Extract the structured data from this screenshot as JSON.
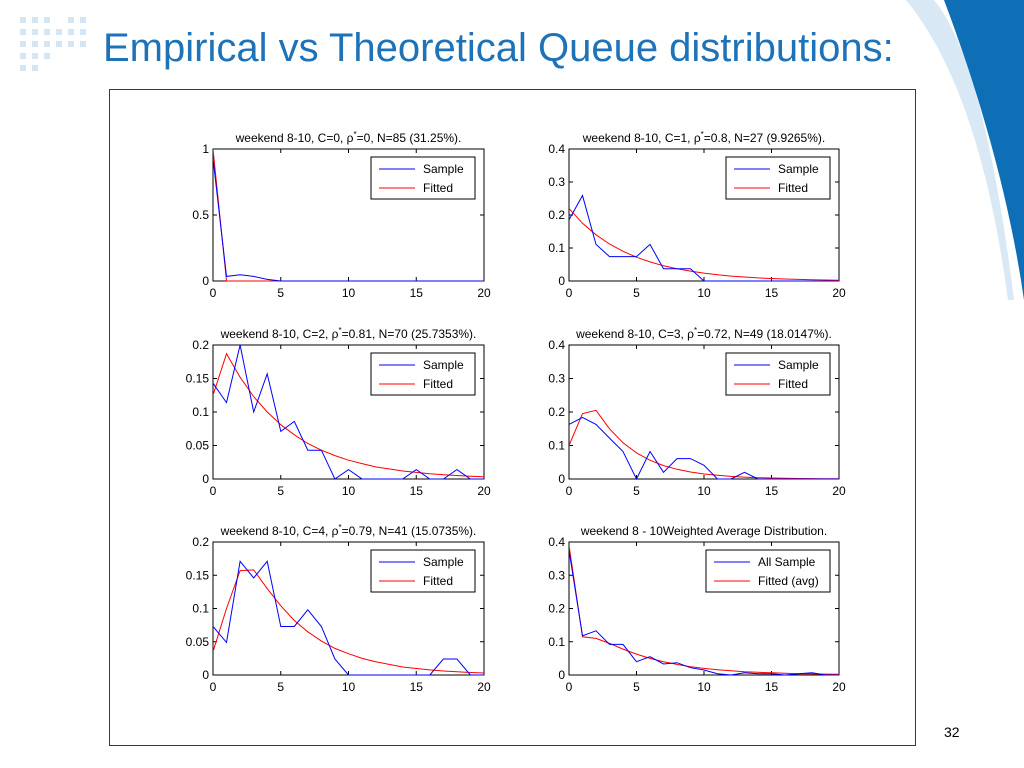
{
  "slide": {
    "title": "Empirical vs Theoretical Queue distributions:",
    "page_number": "32"
  },
  "colors": {
    "title": "#1e72b8",
    "accent_blue": "#0e6fb7",
    "sample_line": "#0000ff",
    "fitted_line": "#ff0000"
  },
  "chart_data": [
    {
      "type": "line",
      "title": "weekend 8-10, C=0, ρ*=0, N=85 (31.25%).",
      "title_parts": [
        "weekend 8-10, C=0, ρ",
        "*",
        "=0, N=85 (31.25%)."
      ],
      "xlim": [
        0,
        20
      ],
      "ylim": [
        0,
        1
      ],
      "xticks": [
        0,
        5,
        10,
        15,
        20
      ],
      "yticks": [
        0,
        0.5,
        1
      ],
      "xtick_labels": [
        "0",
        "5",
        "10",
        "15",
        "20"
      ],
      "ytick_labels": [
        "0",
        "0.5",
        "1"
      ],
      "legend_position": "top-right",
      "grid": false,
      "series": [
        {
          "name": "Sample",
          "color": "#0000ff",
          "x": [
            0,
            1,
            2,
            3,
            4,
            5,
            6,
            7,
            8,
            9,
            10,
            11,
            12,
            13,
            14,
            15,
            16,
            17,
            18,
            19,
            20
          ],
          "y": [
            0.93,
            0.035,
            0.047,
            0.035,
            0.012,
            0,
            0,
            0,
            0,
            0,
            0,
            0,
            0,
            0,
            0,
            0,
            0,
            0,
            0,
            0,
            0
          ]
        },
        {
          "name": "Fitted",
          "color": "#ff0000",
          "x": [
            0,
            1,
            2,
            3,
            4,
            5,
            6,
            7,
            8,
            9,
            10,
            11,
            12,
            13,
            14,
            15,
            16,
            17,
            18,
            19,
            20
          ],
          "y": [
            1,
            0,
            0,
            0,
            0,
            0,
            0,
            0,
            0,
            0,
            0,
            0,
            0,
            0,
            0,
            0,
            0,
            0,
            0,
            0,
            0
          ]
        }
      ]
    },
    {
      "type": "line",
      "title": "weekend 8-10, C=1, ρ*=0.8, N=27 (9.9265%).",
      "title_parts": [
        "weekend 8-10, C=1, ρ",
        "*",
        "=0.8, N=27 (9.9265%)."
      ],
      "xlim": [
        0,
        20
      ],
      "ylim": [
        0,
        0.4
      ],
      "xticks": [
        0,
        5,
        10,
        15,
        20
      ],
      "yticks": [
        0,
        0.1,
        0.2,
        0.3,
        0.4
      ],
      "xtick_labels": [
        "0",
        "5",
        "10",
        "15",
        "20"
      ],
      "ytick_labels": [
        "0",
        "0.1",
        "0.2",
        "0.3",
        "0.4"
      ],
      "legend_position": "top-right",
      "grid": false,
      "series": [
        {
          "name": "Sample",
          "color": "#0000ff",
          "x": [
            0,
            1,
            2,
            3,
            4,
            5,
            6,
            7,
            8,
            9,
            10,
            11,
            12,
            13,
            14,
            15,
            16,
            17,
            18,
            19,
            20
          ],
          "y": [
            0.185,
            0.259,
            0.111,
            0.074,
            0.074,
            0.074,
            0.111,
            0.037,
            0.037,
            0.037,
            0,
            0,
            0,
            0,
            0,
            0,
            0,
            0,
            0,
            0,
            0
          ]
        },
        {
          "name": "Fitted",
          "color": "#ff0000",
          "x": [
            0,
            1,
            2,
            3,
            4,
            5,
            6,
            7,
            8,
            9,
            10,
            11,
            12,
            13,
            14,
            15,
            16,
            17,
            18,
            19,
            20
          ],
          "y": [
            0.22,
            0.175,
            0.14,
            0.112,
            0.09,
            0.072,
            0.058,
            0.046,
            0.037,
            0.03,
            0.024,
            0.019,
            0.015,
            0.012,
            0.0095,
            0.0076,
            0.006,
            0.0048,
            0.0038,
            0.003,
            0.0024
          ]
        }
      ]
    },
    {
      "type": "line",
      "title": "weekend 8-10, C=2, ρ*=0.81, N=70 (25.7353%).",
      "title_parts": [
        "weekend 8-10, C=2, ρ",
        "*",
        "=0.81, N=70 (25.7353%)."
      ],
      "xlim": [
        0,
        20
      ],
      "ylim": [
        0,
        0.2
      ],
      "xticks": [
        0,
        5,
        10,
        15,
        20
      ],
      "yticks": [
        0,
        0.05,
        0.1,
        0.15,
        0.2
      ],
      "xtick_labels": [
        "0",
        "5",
        "10",
        "15",
        "20"
      ],
      "ytick_labels": [
        "0",
        "0.05",
        "0.1",
        "0.15",
        "0.2"
      ],
      "legend_position": "top-right",
      "grid": false,
      "series": [
        {
          "name": "Sample",
          "color": "#0000ff",
          "x": [
            0,
            1,
            2,
            3,
            4,
            5,
            6,
            7,
            8,
            9,
            10,
            11,
            12,
            13,
            14,
            15,
            16,
            17,
            18,
            19,
            20
          ],
          "y": [
            0.143,
            0.114,
            0.2,
            0.1,
            0.157,
            0.071,
            0.086,
            0.043,
            0.043,
            0,
            0.014,
            0,
            0,
            0,
            0,
            0.014,
            0,
            0,
            0.014,
            0,
            0
          ]
        },
        {
          "name": "Fitted",
          "color": "#ff0000",
          "x": [
            0,
            1,
            2,
            3,
            4,
            5,
            6,
            7,
            8,
            9,
            10,
            11,
            12,
            13,
            14,
            15,
            16,
            17,
            18,
            19,
            20
          ],
          "y": [
            0.125,
            0.187,
            0.152,
            0.123,
            0.1,
            0.081,
            0.066,
            0.053,
            0.043,
            0.035,
            0.028,
            0.023,
            0.018,
            0.015,
            0.012,
            0.0098,
            0.0079,
            0.0064,
            0.0052,
            0.0042,
            0.0034
          ]
        }
      ]
    },
    {
      "type": "line",
      "title": "weekend 8-10, C=3, ρ*=0.72, N=49 (18.0147%).",
      "title_parts": [
        "weekend 8-10, C=3, ρ",
        "*",
        "=0.72, N=49 (18.0147%)."
      ],
      "xlim": [
        0,
        20
      ],
      "ylim": [
        0,
        0.4
      ],
      "xticks": [
        0,
        5,
        10,
        15,
        20
      ],
      "yticks": [
        0,
        0.1,
        0.2,
        0.3,
        0.4
      ],
      "xtick_labels": [
        "0",
        "5",
        "10",
        "15",
        "20"
      ],
      "ytick_labels": [
        "0",
        "0.1",
        "0.2",
        "0.3",
        "0.4"
      ],
      "legend_position": "top-right",
      "grid": false,
      "series": [
        {
          "name": "Sample",
          "color": "#0000ff",
          "x": [
            0,
            1,
            2,
            3,
            4,
            5,
            6,
            7,
            8,
            9,
            10,
            11,
            12,
            13,
            14,
            15,
            16,
            17,
            18,
            19,
            20
          ],
          "y": [
            0.163,
            0.184,
            0.163,
            0.122,
            0.082,
            0,
            0.082,
            0.02,
            0.061,
            0.061,
            0.041,
            0,
            0,
            0.02,
            0,
            0,
            0,
            0,
            0,
            0,
            0
          ]
        },
        {
          "name": "Fitted",
          "color": "#ff0000",
          "x": [
            0,
            1,
            2,
            3,
            4,
            5,
            6,
            7,
            8,
            9,
            10,
            11,
            12,
            13,
            14,
            15,
            16,
            17,
            18,
            19,
            20
          ],
          "y": [
            0.1,
            0.195,
            0.205,
            0.15,
            0.108,
            0.078,
            0.056,
            0.04,
            0.029,
            0.021,
            0.015,
            0.011,
            0.0078,
            0.0056,
            0.004,
            0.0029,
            0.0021,
            0.0015,
            0.0011,
            0.0008,
            0.0006
          ]
        }
      ]
    },
    {
      "type": "line",
      "title": "weekend 8-10, C=4, ρ*=0.79, N=41 (15.0735%).",
      "title_parts": [
        "weekend 8-10, C=4, ρ",
        "*",
        "=0.79, N=41 (15.0735%)."
      ],
      "xlim": [
        0,
        20
      ],
      "ylim": [
        0,
        0.2
      ],
      "xticks": [
        0,
        5,
        10,
        15,
        20
      ],
      "yticks": [
        0,
        0.05,
        0.1,
        0.15,
        0.2
      ],
      "xtick_labels": [
        "0",
        "5",
        "10",
        "15",
        "20"
      ],
      "ytick_labels": [
        "0",
        "0.05",
        "0.1",
        "0.15",
        "0.2"
      ],
      "legend_position": "top-right",
      "grid": false,
      "series": [
        {
          "name": "Sample",
          "color": "#0000ff",
          "x": [
            0,
            1,
            2,
            3,
            4,
            5,
            6,
            7,
            8,
            9,
            10,
            11,
            12,
            13,
            14,
            15,
            16,
            17,
            18,
            19,
            20
          ],
          "y": [
            0.073,
            0.049,
            0.171,
            0.146,
            0.171,
            0.073,
            0.073,
            0.098,
            0.073,
            0.024,
            0,
            0,
            0,
            0,
            0,
            0,
            0,
            0.024,
            0.024,
            0,
            0
          ]
        },
        {
          "name": "Fitted",
          "color": "#ff0000",
          "x": [
            0,
            1,
            2,
            3,
            4,
            5,
            6,
            7,
            8,
            9,
            10,
            11,
            12,
            13,
            14,
            15,
            16,
            17,
            18,
            19,
            20
          ],
          "y": [
            0.035,
            0.1,
            0.157,
            0.158,
            0.13,
            0.104,
            0.082,
            0.065,
            0.051,
            0.04,
            0.032,
            0.025,
            0.02,
            0.016,
            0.012,
            0.0097,
            0.0077,
            0.006,
            0.0048,
            0.0038,
            0.003
          ]
        }
      ]
    },
    {
      "type": "line",
      "title": "weekend 8 - 10Weighted Average Distribution.",
      "title_parts": [
        "weekend 8 - 10Weighted Average Distribution.",
        "",
        ""
      ],
      "xlim": [
        0,
        20
      ],
      "ylim": [
        0,
        0.4
      ],
      "xticks": [
        0,
        5,
        10,
        15,
        20
      ],
      "yticks": [
        0,
        0.1,
        0.2,
        0.3,
        0.4
      ],
      "xtick_labels": [
        "0",
        "5",
        "10",
        "15",
        "20"
      ],
      "ytick_labels": [
        "0",
        "0.1",
        "0.2",
        "0.3",
        "0.4"
      ],
      "legend_position": "top-right",
      "grid": false,
      "series": [
        {
          "name": "All Sample",
          "color": "#0000ff",
          "x": [
            0,
            1,
            2,
            3,
            4,
            5,
            6,
            7,
            8,
            9,
            10,
            11,
            12,
            13,
            14,
            15,
            16,
            17,
            18,
            19,
            20
          ],
          "y": [
            0.375,
            0.118,
            0.133,
            0.092,
            0.092,
            0.04,
            0.055,
            0.033,
            0.037,
            0.022,
            0.015,
            0.004,
            0,
            0.007,
            0.004,
            0.004,
            0,
            0.004,
            0.007,
            0,
            0
          ]
        },
        {
          "name": "Fitted (avg)",
          "color": "#ff0000",
          "x": [
            0,
            1,
            2,
            3,
            4,
            5,
            6,
            7,
            8,
            9,
            10,
            11,
            12,
            13,
            14,
            15,
            16,
            17,
            18,
            19,
            20
          ],
          "y": [
            0.39,
            0.115,
            0.11,
            0.095,
            0.078,
            0.063,
            0.05,
            0.04,
            0.032,
            0.025,
            0.02,
            0.016,
            0.013,
            0.01,
            0.008,
            0.0065,
            0.005,
            0.004,
            0.0032,
            0.0026,
            0.002
          ]
        }
      ]
    }
  ]
}
